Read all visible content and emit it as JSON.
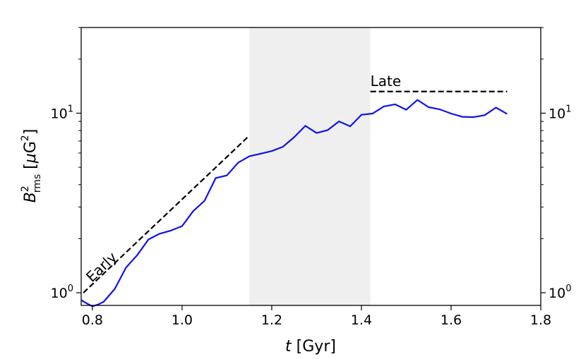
{
  "chart_data": {
    "type": "line",
    "xlabel": {
      "var": "t",
      "unit": " [Gyr]"
    },
    "ylabel": {
      "var": "B",
      "sup": "2",
      "sub": "rms",
      "unit_open": " [",
      "unit_mu": "μ",
      "unit_g": "G",
      "unit_sup": "2",
      "unit_close": "]"
    },
    "xlim": [
      0.775,
      1.8
    ],
    "ylim": [
      0.85,
      30
    ],
    "yscale": "log",
    "grid": false,
    "x_ticks": [
      {
        "value": 0.8,
        "label": "0.8"
      },
      {
        "value": 1.0,
        "label": "1.0"
      },
      {
        "value": 1.2,
        "label": "1.2"
      },
      {
        "value": 1.4,
        "label": "1.4"
      },
      {
        "value": 1.6,
        "label": "1.6"
      },
      {
        "value": 1.8,
        "label": "1.8"
      }
    ],
    "y_major_ticks": [
      {
        "value": 1,
        "base": "10",
        "exp": "0"
      },
      {
        "value": 10,
        "base": "10",
        "exp": "1"
      }
    ],
    "y_minor_ticks": [
      2,
      3,
      4,
      5,
      6,
      7,
      8,
      9,
      20,
      30
    ],
    "shaded_region": {
      "x": [
        1.15,
        1.42
      ],
      "color": "#efefef"
    },
    "series": [
      {
        "color": "#1010ee",
        "x": [
          0.775,
          0.788,
          0.8,
          0.813,
          0.825,
          0.85,
          0.875,
          0.9,
          0.925,
          0.95,
          0.975,
          1.0,
          1.025,
          1.05,
          1.075,
          1.1,
          1.125,
          1.15,
          1.175,
          1.2,
          1.225,
          1.25,
          1.275,
          1.3,
          1.325,
          1.35,
          1.375,
          1.4,
          1.425,
          1.45,
          1.475,
          1.5,
          1.525,
          1.55,
          1.575,
          1.6,
          1.625,
          1.65,
          1.675,
          1.7,
          1.725
        ],
        "y": [
          0.91,
          0.87,
          0.84,
          0.86,
          0.89,
          1.05,
          1.38,
          1.62,
          1.98,
          2.13,
          2.22,
          2.35,
          2.85,
          3.25,
          4.35,
          4.5,
          5.3,
          5.75,
          5.95,
          6.15,
          6.5,
          7.35,
          8.5,
          7.75,
          8.05,
          9.0,
          8.45,
          9.8,
          9.95,
          10.9,
          11.2,
          10.45,
          11.85,
          10.8,
          10.5,
          9.95,
          9.55,
          9.5,
          9.75,
          10.75,
          9.9
        ]
      }
    ],
    "annotations": [
      {
        "label": "Early",
        "x": [
          0.78,
          1.15
        ],
        "y": [
          1.0,
          7.5
        ],
        "color": "#000000",
        "style": "dashed"
      },
      {
        "label": "Late",
        "x": [
          1.42,
          1.725
        ],
        "y": [
          13.2,
          13.2
        ],
        "color": "#000000",
        "style": "dashed"
      }
    ]
  }
}
